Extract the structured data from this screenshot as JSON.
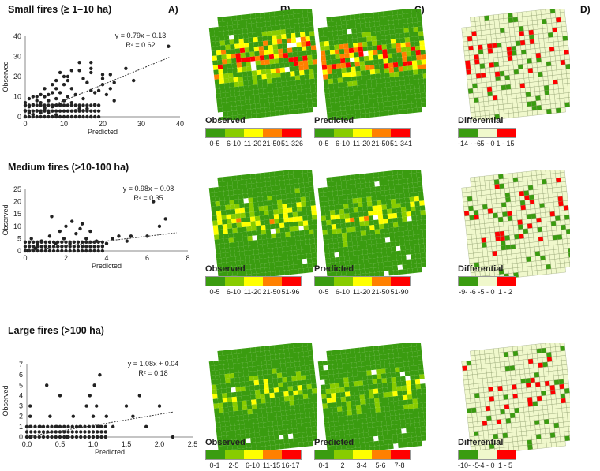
{
  "panels": {
    "a": "A)",
    "b": "B)",
    "c": "C)",
    "d": "D)"
  },
  "colors": {
    "c1": "#3a9c10",
    "c2": "#88cc00",
    "c3": "#ffff00",
    "c4": "#ff8000",
    "c5": "#ff0000",
    "dneg": "#3a9c10",
    "dzero": "#f0f8cc",
    "dpos": "#ff0000"
  },
  "chart_data": [
    {
      "type": "scatter",
      "title": "Small fires (≥ 1–10 ha)",
      "xlabel": "Predicted",
      "ylabel": "Observed",
      "xlim": [
        0,
        40
      ],
      "ylim": [
        0,
        40
      ],
      "xticks": [
        "0",
        "10",
        "20",
        "30",
        "40"
      ],
      "yticks": [
        "0",
        "10",
        "20",
        "30",
        "40"
      ],
      "equation": "y = 0.79x + 0.13",
      "r2": "R² = 0.62",
      "trend": {
        "slope": 0.79,
        "intercept": 0.13
      },
      "points": [
        [
          0,
          0
        ],
        [
          0,
          3
        ],
        [
          0,
          7
        ],
        [
          1,
          2
        ],
        [
          1,
          5
        ],
        [
          1,
          9
        ],
        [
          2,
          1
        ],
        [
          2,
          6
        ],
        [
          2,
          10
        ],
        [
          3,
          3
        ],
        [
          3,
          8
        ],
        [
          3,
          10
        ],
        [
          4,
          2
        ],
        [
          4,
          7
        ],
        [
          4,
          11
        ],
        [
          5,
          4
        ],
        [
          5,
          10
        ],
        [
          5,
          14
        ],
        [
          6,
          2
        ],
        [
          6,
          8
        ],
        [
          6,
          11
        ],
        [
          7,
          5
        ],
        [
          7,
          12
        ],
        [
          7,
          16
        ],
        [
          8,
          1
        ],
        [
          8,
          9
        ],
        [
          8,
          14
        ],
        [
          8,
          18
        ],
        [
          9,
          6
        ],
        [
          9,
          12
        ],
        [
          9,
          22
        ],
        [
          10,
          8
        ],
        [
          10,
          16
        ],
        [
          10,
          20
        ],
        [
          11,
          10
        ],
        [
          11,
          18
        ],
        [
          11,
          20
        ],
        [
          12,
          7
        ],
        [
          12,
          14
        ],
        [
          12,
          23
        ],
        [
          13,
          3
        ],
        [
          13,
          11
        ],
        [
          14,
          4
        ],
        [
          14,
          23
        ],
        [
          14,
          27
        ],
        [
          15,
          3
        ],
        [
          15,
          9
        ],
        [
          15,
          19
        ],
        [
          16,
          4
        ],
        [
          16,
          17
        ],
        [
          17,
          0
        ],
        [
          17,
          13
        ],
        [
          17,
          22
        ],
        [
          17,
          24
        ],
        [
          17,
          27
        ],
        [
          18,
          6
        ],
        [
          18,
          12
        ],
        [
          19,
          13
        ],
        [
          20,
          16
        ],
        [
          20,
          19
        ],
        [
          20,
          21
        ],
        [
          21,
          11
        ],
        [
          22,
          14
        ],
        [
          22,
          21
        ],
        [
          23,
          8
        ],
        [
          23,
          17
        ],
        [
          26,
          24
        ],
        [
          28,
          18
        ],
        [
          37,
          35
        ]
      ]
    },
    {
      "type": "scatter",
      "title": "Medium fires (>10-100 ha)",
      "xlabel": "Predicted",
      "ylabel": "Observed",
      "xlim": [
        0,
        8
      ],
      "ylim": [
        0,
        25
      ],
      "xticks": [
        "0",
        "2",
        "4",
        "6",
        "8"
      ],
      "yticks": [
        "0",
        "5",
        "10",
        "15",
        "20",
        "25"
      ],
      "equation": "y = 0.98x + 0.08",
      "r2": "R² = 0.35",
      "trend": {
        "slope": 0.98,
        "intercept": 0.08
      },
      "points": [
        [
          0.1,
          0
        ],
        [
          0.2,
          2
        ],
        [
          0.3,
          5
        ],
        [
          0.5,
          1
        ],
        [
          0.6,
          3
        ],
        [
          0.8,
          4
        ],
        [
          1,
          2
        ],
        [
          1.2,
          6
        ],
        [
          1.3,
          14
        ],
        [
          1.5,
          3
        ],
        [
          1.7,
          8
        ],
        [
          1.9,
          5
        ],
        [
          2,
          10
        ],
        [
          2.2,
          3
        ],
        [
          2.3,
          12
        ],
        [
          2.5,
          7
        ],
        [
          2.7,
          9
        ],
        [
          2.8,
          11
        ],
        [
          3,
          5
        ],
        [
          3.2,
          8
        ],
        [
          3.5,
          4
        ],
        [
          3.8,
          2
        ],
        [
          4,
          3
        ],
        [
          4.3,
          5
        ],
        [
          4.6,
          6
        ],
        [
          5,
          4
        ],
        [
          5.2,
          6
        ],
        [
          6,
          6
        ],
        [
          6.3,
          20
        ],
        [
          6.6,
          10
        ],
        [
          6.9,
          13
        ]
      ]
    },
    {
      "type": "scatter",
      "title": "Large fires (>100 ha)",
      "xlabel": "Predicted",
      "ylabel": "Observed",
      "xlim": [
        0,
        2.5
      ],
      "ylim": [
        0,
        7
      ],
      "xticks": [
        "0.0",
        "0.5",
        "1.0",
        "1.5",
        "2.0",
        "2.5"
      ],
      "yticks": [
        "0",
        "1",
        "2",
        "3",
        "4",
        "5",
        "6",
        "7"
      ],
      "equation": "y = 1.08x + 0.04",
      "r2": "R² = 0.18",
      "trend": {
        "slope": 1.08,
        "intercept": 0.04
      },
      "points": [
        [
          0.05,
          0
        ],
        [
          0.05,
          1
        ],
        [
          0.05,
          2
        ],
        [
          0.05,
          3
        ],
        [
          0.2,
          1
        ],
        [
          0.3,
          5
        ],
        [
          0.35,
          2
        ],
        [
          0.45,
          1
        ],
        [
          0.5,
          4
        ],
        [
          0.6,
          0
        ],
        [
          0.7,
          2
        ],
        [
          0.8,
          1
        ],
        [
          0.9,
          3
        ],
        [
          0.95,
          4
        ],
        [
          1,
          2
        ],
        [
          1.02,
          5
        ],
        [
          1.05,
          3
        ],
        [
          1.1,
          6
        ],
        [
          1.1,
          1
        ],
        [
          1.2,
          2
        ],
        [
          1.3,
          1
        ],
        [
          1.5,
          3
        ],
        [
          1.6,
          2
        ],
        [
          1.7,
          4
        ],
        [
          1.8,
          1
        ],
        [
          2.0,
          3
        ],
        [
          2.2,
          0
        ]
      ]
    }
  ],
  "rows": [
    {
      "legends": {
        "obs": {
          "title": "Observed",
          "labels": [
            "0-5",
            "6-10",
            "11-20",
            "21-50",
            "51-326"
          ]
        },
        "pred": {
          "title": "Predicted",
          "labels": [
            "0-5",
            "6-10",
            "11-20",
            "21-50",
            "51-341"
          ]
        },
        "diff": {
          "title": "Differential",
          "labels": [
            "-14 - -6",
            "-5 - 0",
            "1 - 15"
          ]
        }
      }
    },
    {
      "legends": {
        "obs": {
          "title": "Observed",
          "labels": [
            "0-5",
            "6-10",
            "11-20",
            "21-50",
            "51-96"
          ]
        },
        "pred": {
          "title": "Predicted",
          "labels": [
            "0-5",
            "6-10",
            "11-20",
            "21-50",
            "51-90"
          ]
        },
        "diff": {
          "title": "Differential",
          "labels": [
            "-9- -6",
            "-5 - 0",
            "1 - 2"
          ]
        }
      }
    },
    {
      "legends": {
        "obs": {
          "title": "Observed",
          "labels": [
            "0-1",
            "2-5",
            "6-10",
            "11-15",
            "16-17"
          ]
        },
        "pred": {
          "title": "Predicted",
          "labels": [
            "0-1",
            "2",
            "3-4",
            "5-6",
            "7-8"
          ]
        },
        "diff": {
          "title": "Differential",
          "labels": [
            "-10- -5",
            "-4 - 0",
            "1 - 5"
          ]
        }
      }
    }
  ]
}
